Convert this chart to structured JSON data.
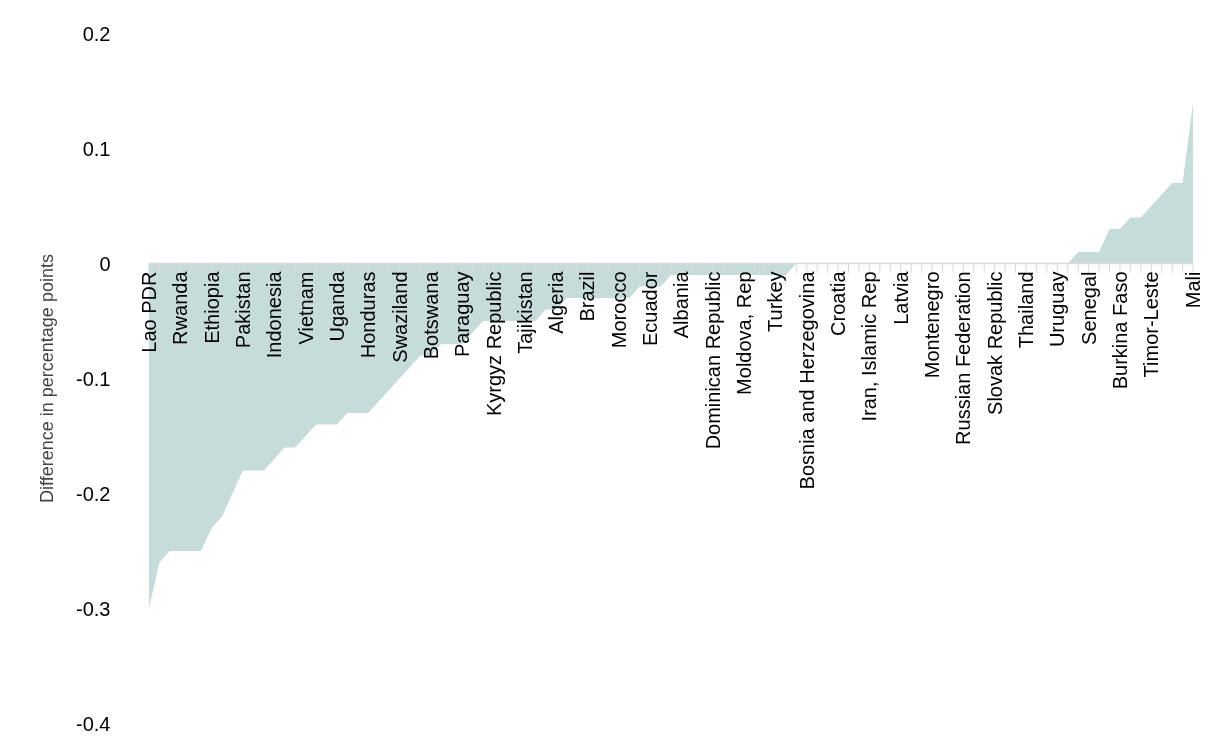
{
  "chart_data": {
    "type": "area",
    "ylabel": "Difference in percentage points",
    "categories": [
      "Lao PDR",
      null,
      null,
      "Rwanda",
      null,
      null,
      "Ethiopia",
      null,
      null,
      "Pakistan",
      null,
      null,
      "Indonesia",
      null,
      null,
      "Vietnam",
      null,
      null,
      "Uganda",
      null,
      null,
      "Honduras",
      null,
      null,
      "Swaziland",
      null,
      null,
      "Botswana",
      null,
      null,
      "Paraguay",
      null,
      null,
      "Kyrgyz Republic",
      null,
      null,
      "Tajikistan",
      null,
      null,
      "Algeria",
      null,
      null,
      "Brazil",
      null,
      null,
      "Morocco",
      null,
      null,
      "Ecuador",
      null,
      null,
      "Albania",
      null,
      null,
      "Dominican Republic",
      null,
      null,
      "Moldova, Rep",
      null,
      null,
      "Turkey",
      null,
      null,
      "Bosnia and Herzegovina",
      null,
      null,
      "Croatia",
      null,
      null,
      "Iran, Islamic Rep",
      null,
      null,
      "Latvia",
      null,
      null,
      "Montenegro",
      null,
      null,
      "Russian Federation",
      null,
      null,
      "Slovak Republic",
      null,
      null,
      "Thailand",
      null,
      null,
      "Uruguay",
      null,
      null,
      "Senegal",
      null,
      null,
      "Burkina Faso",
      null,
      null,
      "Timor-Leste",
      null,
      null,
      null,
      "Mali"
    ],
    "values": [
      -0.3,
      -0.26,
      -0.25,
      -0.25,
      -0.25,
      -0.25,
      -0.23,
      -0.22,
      -0.2,
      -0.18,
      -0.18,
      -0.18,
      -0.17,
      -0.16,
      -0.16,
      -0.15,
      -0.14,
      -0.14,
      -0.14,
      -0.13,
      -0.13,
      -0.13,
      -0.12,
      -0.11,
      -0.1,
      -0.09,
      -0.08,
      -0.08,
      -0.07,
      -0.07,
      -0.07,
      -0.06,
      -0.05,
      -0.05,
      -0.05,
      -0.05,
      -0.05,
      -0.05,
      -0.04,
      -0.04,
      -0.03,
      -0.03,
      -0.03,
      -0.03,
      -0.03,
      -0.03,
      -0.03,
      -0.02,
      -0.02,
      -0.02,
      -0.01,
      -0.01,
      -0.01,
      -0.01,
      -0.01,
      -0.01,
      -0.01,
      -0.01,
      -0.01,
      -0.01,
      -0.01,
      -0.01,
      0,
      0,
      0,
      0,
      0,
      0,
      0,
      0,
      0,
      0,
      0,
      0,
      0,
      0,
      0,
      0,
      0,
      0,
      0,
      0,
      0,
      0,
      0,
      0,
      0,
      0,
      0,
      0.01,
      0.01,
      0.01,
      0.03,
      0.03,
      0.04,
      0.04,
      0.05,
      0.06,
      0.07,
      0.07,
      0.14
    ],
    "color": "#c6dcda",
    "ylim": [
      -0.4,
      0.2
    ],
    "yticks": [
      -0.4,
      -0.3,
      -0.2,
      -0.1,
      0,
      0.1,
      0.2
    ],
    "grid": false
  }
}
